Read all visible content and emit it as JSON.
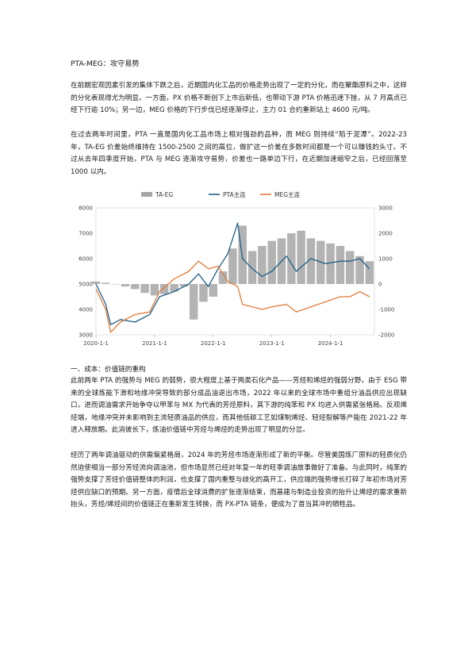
{
  "title": "PTA-MEG：攻守易势",
  "paragraphs": [
    "在前期宏观因素引发的集体下跌之后，近期国内化工品的价格走势出现了一定的分化，而在聚酯原料之中，这样的分化表现得尤为明显。一方面，PX 价格不断创下上市后新低，也带动下游 PTA 价格迅速下挫，从 7 月高点已经下行逾 10%；另一边，MEG 价格的下行步伐已经逐渐停止，主力 01 合约重新站上 4600 元/吨。",
    "在过去两年时间里，PTA 一直是国内化工品市场上相对强劲的品种，而 MEG 则持续“陷于泥潭”。2022-23 年，TA-EG 价差始终维持在 1500-2500 之间的高位，做扩这一价差在多数时间都是一个可以赚钱的头寸。不过从去年四季度开始，PTA 与 MEG 逐渐攻守易势，价差也一路单边下行，在近期加速缩窄之后，已经回落至 1000 以内。"
  ],
  "section_heading": "一、成本：价值链的重构",
  "paragraphs2": [
    "此前两年 PTA 的强势与 MEG 的弱势，很大程度上基于两类石化产品——芳烃和烯烃的强弱分野。由于 ESG 带来的全球炼能下滑和地缘冲突导致的部分成品油退出市场，2022 年以来的全球市场中重组分油品供应出现缺口，进而调油需求开始争夺以甲苯与 MX 为代表的芳烃原料，其下游的纯苯和 PX 均进入供需紧张格局。反观烯烃端，地缘冲突并未影响到主流轻质油品的供应，而其他低碳工艺如煤制烯烃、轻烃裂解等产能在 2021-22 年进入释放期。此消彼长下，炼油价值链中芳烃与烯烃的走势出现了明显的分岔。",
    "经历了两年调油驱动的供需偏紧格局，2024 年的芳烃市场逐渐形成了新的平衡。尽管美国炼厂原料的轻质化仍然迫使相当一部分芳烃流向调油池，但市场显然已经对年复一年的旺季调油故事做好了准备。与此同时，纯苯的强势支撑了芳烃价值链整体的利润，也支撑了国内重整与歧化的高开工，供应端的强势增长打碎了年初市场对芳烃供应缺口的预期。另一方面，疫情后全球消费的扩张逐渐结束，而基建与制造业投资的抬升让烯烃的需求重新抬头，芳烃/烯烃间的价值链正在重新发生转换，而 PX-PTA 链条，便成为了首当其冲的牺牲品。"
  ],
  "chart_data": {
    "type": "line",
    "legend": [
      "TA-EG",
      "PTA主连",
      "MEG主连"
    ],
    "legend_position": "top-center",
    "series": [
      {
        "name": "TA-EG",
        "type": "bar",
        "axis": "right",
        "color": "#a6a6a6",
        "x": [
          "2020-01",
          "2020-03",
          "2020-05",
          "2020-07",
          "2020-09",
          "2020-11",
          "2021-01",
          "2021-03",
          "2021-05",
          "2021-07",
          "2021-09",
          "2021-11",
          "2022-01",
          "2022-03",
          "2022-05",
          "2022-07",
          "2022-09",
          "2022-11",
          "2023-01",
          "2023-03",
          "2023-05",
          "2023-07",
          "2023-09",
          "2023-11",
          "2024-01",
          "2024-03",
          "2024-05",
          "2024-07",
          "2024-09"
        ],
        "values": [
          100,
          50,
          0,
          -100,
          -200,
          -350,
          -450,
          -400,
          -300,
          -100,
          -1400,
          -700,
          -500,
          500,
          1400,
          2300,
          1300,
          1500,
          1700,
          1800,
          2000,
          2100,
          1800,
          1700,
          1600,
          1500,
          1300,
          1100,
          900
        ]
      },
      {
        "name": "PTA主连",
        "axis": "left",
        "color": "#1f5f86",
        "x": [
          "2020-01",
          "2020-03",
          "2020-04",
          "2020-06",
          "2020-09",
          "2020-12",
          "2021-02",
          "2021-05",
          "2021-08",
          "2021-10",
          "2021-12",
          "2022-02",
          "2022-04",
          "2022-06",
          "2022-07",
          "2022-09",
          "2022-11",
          "2023-01",
          "2023-04",
          "2023-06",
          "2023-09",
          "2023-12",
          "2024-03",
          "2024-05",
          "2024-07",
          "2024-09"
        ],
        "values": [
          5000,
          4200,
          3400,
          3600,
          3500,
          3800,
          4500,
          4700,
          5000,
          5400,
          4900,
          5600,
          6200,
          7400,
          6000,
          5600,
          5300,
          5500,
          6100,
          5500,
          6000,
          5800,
          5900,
          5900,
          6000,
          5600
        ]
      },
      {
        "name": "MEG主连",
        "axis": "left",
        "color": "#e07b3a",
        "x": [
          "2020-01",
          "2020-03",
          "2020-04",
          "2020-06",
          "2020-09",
          "2020-12",
          "2021-02",
          "2021-05",
          "2021-08",
          "2021-10",
          "2021-12",
          "2022-02",
          "2022-04",
          "2022-06",
          "2022-07",
          "2022-09",
          "2022-11",
          "2023-01",
          "2023-04",
          "2023-06",
          "2023-09",
          "2023-12",
          "2024-03",
          "2024-05",
          "2024-07",
          "2024-09"
        ],
        "values": [
          4800,
          4000,
          3100,
          3500,
          3800,
          3900,
          4700,
          5200,
          5500,
          5900,
          5600,
          5700,
          5100,
          4900,
          4200,
          4100,
          4000,
          4100,
          4200,
          3900,
          4100,
          4300,
          4500,
          4500,
          4700,
          4500
        ]
      }
    ],
    "y_left": {
      "min": 3000,
      "max": 8000,
      "ticks": [
        "8000",
        "7000",
        "6000",
        "5000",
        "4000",
        "3000"
      ]
    },
    "y_right": {
      "min": -2000,
      "max": 3000,
      "ticks": [
        "3000",
        "2000",
        "1000",
        "0",
        "-1000",
        "-2000"
      ]
    },
    "x_ticks": [
      "2020-1-1",
      "2021-1-1",
      "2022-1-1",
      "2023-1-1",
      "2024-1-1"
    ],
    "x_start": "2020-01",
    "x_end": "2024-10"
  }
}
